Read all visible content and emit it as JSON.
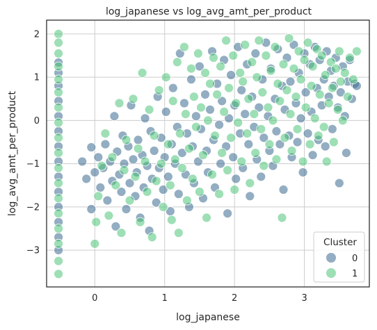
{
  "chart_data": {
    "type": "scatter",
    "title": "log_japanese vs log_avg_amt_per_product",
    "xlabel": "log_japanese",
    "ylabel": "log_avg_amt_per_product",
    "xlim": [
      -0.69,
      3.93
    ],
    "ylim": [
      -3.85,
      2.32
    ],
    "xticks": [
      0,
      1,
      2,
      3
    ],
    "yticks": [
      -3,
      -2,
      -1,
      0,
      1,
      2
    ],
    "grid": true,
    "legend": {
      "title": "Cluster",
      "placement": "bottom-right"
    },
    "series": [
      {
        "name": "0",
        "color": "#3b6a8f",
        "points": [
          [
            -0.52,
            1.34
          ],
          [
            -0.52,
            1.1
          ],
          [
            -0.52,
            0.8
          ],
          [
            -0.52,
            0.45
          ],
          [
            -0.52,
            0.1
          ],
          [
            -0.52,
            -0.25
          ],
          [
            -0.52,
            -0.6
          ],
          [
            -0.52,
            -0.95
          ],
          [
            -0.52,
            -1.3
          ],
          [
            -0.52,
            -1.65
          ],
          [
            -0.52,
            -2.0
          ],
          [
            -0.52,
            -2.35
          ],
          [
            -0.52,
            -2.7
          ],
          [
            -0.52,
            -3.0
          ],
          [
            -0.18,
            -0.95
          ],
          [
            -0.12,
            -1.35
          ],
          [
            -0.05,
            -0.62
          ],
          [
            -0.05,
            -2.05
          ],
          [
            0.0,
            -1.2
          ],
          [
            0.05,
            -0.85
          ],
          [
            0.08,
            -1.55
          ],
          [
            0.12,
            -1.1
          ],
          [
            0.15,
            -0.55
          ],
          [
            0.18,
            -1.85
          ],
          [
            0.22,
            -0.95
          ],
          [
            0.25,
            -1.4
          ],
          [
            0.28,
            0.1
          ],
          [
            0.3,
            -2.45
          ],
          [
            0.32,
            -0.72
          ],
          [
            0.35,
            -1.25
          ],
          [
            0.38,
            -1.65
          ],
          [
            0.4,
            -0.35
          ],
          [
            0.42,
            -1.0
          ],
          [
            0.45,
            -2.05
          ],
          [
            0.48,
            -0.6
          ],
          [
            0.5,
            -1.45
          ],
          [
            0.52,
            0.35
          ],
          [
            0.55,
            -0.9
          ],
          [
            0.58,
            -1.75
          ],
          [
            0.6,
            -1.2
          ],
          [
            0.62,
            -0.45
          ],
          [
            0.65,
            -2.25
          ],
          [
            0.68,
            -0.8
          ],
          [
            0.7,
            -1.55
          ],
          [
            0.72,
            0.05
          ],
          [
            0.75,
            -1.05
          ],
          [
            0.78,
            -2.55
          ],
          [
            0.8,
            -0.25
          ],
          [
            0.82,
            -1.35
          ],
          [
            0.85,
            -0.7
          ],
          [
            0.88,
            -1.9
          ],
          [
            0.9,
            0.55
          ],
          [
            0.92,
            -1.1
          ],
          [
            0.95,
            -0.4
          ],
          [
            0.98,
            -1.6
          ],
          [
            1.0,
            -0.85
          ],
          [
            1.02,
            0.2
          ],
          [
            1.05,
            -1.3
          ],
          [
            1.08,
            -2.1
          ],
          [
            1.1,
            -0.55
          ],
          [
            1.12,
            0.75
          ],
          [
            1.15,
            -1.0
          ],
          [
            1.18,
            -0.15
          ],
          [
            1.2,
            -1.7
          ],
          [
            1.22,
            1.55
          ],
          [
            1.25,
            -0.75
          ],
          [
            1.28,
            0.4
          ],
          [
            1.3,
            -1.25
          ],
          [
            1.32,
            -0.3
          ],
          [
            1.35,
            -2.0
          ],
          [
            1.38,
            0.95
          ],
          [
            1.4,
            -0.6
          ],
          [
            1.42,
            -1.45
          ],
          [
            1.45,
            0.1
          ],
          [
            1.48,
            -0.95
          ],
          [
            1.5,
            1.25
          ],
          [
            1.52,
            -0.2
          ],
          [
            1.55,
            -1.8
          ],
          [
            1.58,
            0.6
          ],
          [
            1.6,
            -0.7
          ],
          [
            1.62,
            -1.2
          ],
          [
            1.65,
            0.25
          ],
          [
            1.68,
            1.6
          ],
          [
            1.7,
            -0.45
          ],
          [
            1.72,
            -1.55
          ],
          [
            1.75,
            0.85
          ],
          [
            1.78,
            -0.1
          ],
          [
            1.8,
            -1.0
          ],
          [
            1.82,
            0.45
          ],
          [
            1.85,
            1.4
          ],
          [
            1.88,
            -0.6
          ],
          [
            1.9,
            -2.15
          ],
          [
            1.92,
            0.05
          ],
          [
            1.95,
            1.05
          ],
          [
            1.98,
            -0.85
          ],
          [
            2.0,
            0.35
          ],
          [
            2.02,
            -1.35
          ],
          [
            2.05,
            1.7
          ],
          [
            2.08,
            -0.3
          ],
          [
            2.1,
            0.7
          ],
          [
            2.12,
            -1.1
          ],
          [
            2.15,
            0.15
          ],
          [
            2.18,
            1.3
          ],
          [
            2.2,
            -0.55
          ],
          [
            2.22,
            -1.75
          ],
          [
            2.25,
            0.55
          ],
          [
            2.28,
            -0.15
          ],
          [
            2.3,
            1.55
          ],
          [
            2.32,
            -0.9
          ],
          [
            2.35,
            0.3
          ],
          [
            2.38,
            -1.3
          ],
          [
            2.4,
            0.95
          ],
          [
            2.42,
            -0.4
          ],
          [
            2.45,
            1.8
          ],
          [
            2.48,
            0.1
          ],
          [
            2.5,
            -0.7
          ],
          [
            2.52,
            1.2
          ],
          [
            2.55,
            -1.05
          ],
          [
            2.58,
            0.5
          ],
          [
            2.6,
            -0.25
          ],
          [
            2.62,
            1.65
          ],
          [
            2.65,
            -0.55
          ],
          [
            2.68,
            0.8
          ],
          [
            2.7,
            -1.6
          ],
          [
            2.72,
            0.25
          ],
          [
            2.75,
            1.45
          ],
          [
            2.78,
            -0.35
          ],
          [
            2.8,
            0.9
          ],
          [
            2.82,
            -0.85
          ],
          [
            2.85,
            1.75
          ],
          [
            2.88,
            0.4
          ],
          [
            2.9,
            -0.5
          ],
          [
            2.92,
            1.1
          ],
          [
            2.95,
            0.05
          ],
          [
            2.98,
            -1.2
          ],
          [
            3.0,
            1.55
          ],
          [
            3.02,
            0.65
          ],
          [
            3.05,
            -0.3
          ],
          [
            3.08,
            1.3
          ],
          [
            3.1,
            0.2
          ],
          [
            3.12,
            -0.8
          ],
          [
            3.15,
            1.7
          ],
          [
            3.18,
            0.75
          ],
          [
            3.2,
            -0.45
          ],
          [
            3.22,
            1.4
          ],
          [
            3.25,
            0.35
          ],
          [
            3.28,
            0.95
          ],
          [
            3.3,
            -0.6
          ],
          [
            3.32,
            1.6
          ],
          [
            3.35,
            0.55
          ],
          [
            3.38,
            1.15
          ],
          [
            3.4,
            -0.2
          ],
          [
            3.42,
            0.8
          ],
          [
            3.45,
            1.45
          ],
          [
            3.48,
            0.3
          ],
          [
            3.5,
            -1.45
          ],
          [
            3.52,
            0.65
          ],
          [
            3.55,
            1.25
          ],
          [
            3.58,
            0.1
          ],
          [
            3.6,
            -0.75
          ],
          [
            3.62,
            0.9
          ],
          [
            3.65,
            1.4
          ],
          [
            3.68,
            0.5
          ],
          [
            3.72,
            0.85
          ],
          [
            3.75,
            0.8
          ]
        ]
      },
      {
        "name": "1",
        "color": "#4ec47a",
        "points": [
          [
            -0.52,
            2.0
          ],
          [
            -0.52,
            1.8
          ],
          [
            -0.52,
            1.55
          ],
          [
            -0.52,
            1.25
          ],
          [
            -0.52,
            0.95
          ],
          [
            -0.52,
            0.65
          ],
          [
            -0.52,
            0.3
          ],
          [
            -0.52,
            -0.05
          ],
          [
            -0.52,
            -0.4
          ],
          [
            -0.52,
            -0.75
          ],
          [
            -0.52,
            -1.1
          ],
          [
            -0.52,
            -1.45
          ],
          [
            -0.52,
            -1.8
          ],
          [
            -0.52,
            -2.15
          ],
          [
            -0.52,
            -2.5
          ],
          [
            -0.52,
            -2.85
          ],
          [
            -0.52,
            -3.25
          ],
          [
            -0.52,
            -3.55
          ],
          [
            0.0,
            -2.85
          ],
          [
            0.02,
            -2.35
          ],
          [
            0.05,
            -1.75
          ],
          [
            0.1,
            -1.05
          ],
          [
            0.15,
            -0.3
          ],
          [
            0.2,
            -2.2
          ],
          [
            0.25,
            -0.85
          ],
          [
            0.3,
            -1.5
          ],
          [
            0.35,
            0.4
          ],
          [
            0.38,
            -2.6
          ],
          [
            0.42,
            -1.15
          ],
          [
            0.45,
            -0.45
          ],
          [
            0.5,
            -1.85
          ],
          [
            0.55,
            0.5
          ],
          [
            0.58,
            -1.3
          ],
          [
            0.62,
            -0.65
          ],
          [
            0.65,
            -2.35
          ],
          [
            0.68,
            1.1
          ],
          [
            0.72,
            -0.95
          ],
          [
            0.75,
            -1.65
          ],
          [
            0.78,
            0.25
          ],
          [
            0.82,
            -2.7
          ],
          [
            0.85,
            -0.35
          ],
          [
            0.88,
            -1.4
          ],
          [
            0.92,
            0.7
          ],
          [
            0.95,
            -1.0
          ],
          [
            0.98,
            -2.0
          ],
          [
            1.02,
            1.0
          ],
          [
            1.05,
            -0.55
          ],
          [
            1.08,
            -1.5
          ],
          [
            1.1,
            -2.3
          ],
          [
            1.12,
            0.45
          ],
          [
            1.15,
            -0.9
          ],
          [
            1.18,
            1.35
          ],
          [
            1.2,
            -2.6
          ],
          [
            1.22,
            -0.3
          ],
          [
            1.25,
            -1.1
          ],
          [
            1.28,
            1.7
          ],
          [
            1.3,
            0.15
          ],
          [
            1.32,
            -1.85
          ],
          [
            1.35,
            -0.65
          ],
          [
            1.38,
            1.2
          ],
          [
            1.4,
            -1.35
          ],
          [
            1.42,
            0.55
          ],
          [
            1.45,
            -0.15
          ],
          [
            1.48,
            1.55
          ],
          [
            1.5,
            -1.65
          ],
          [
            1.52,
            0.3
          ],
          [
            1.55,
            -0.8
          ],
          [
            1.58,
            1.1
          ],
          [
            1.6,
            -2.25
          ],
          [
            1.62,
            0.0
          ],
          [
            1.65,
            0.85
          ],
          [
            1.68,
            -1.25
          ],
          [
            1.7,
            1.45
          ],
          [
            1.72,
            -0.35
          ],
          [
            1.75,
            0.6
          ],
          [
            1.78,
            -1.7
          ],
          [
            1.8,
            1.25
          ],
          [
            1.82,
            -0.75
          ],
          [
            1.85,
            0.2
          ],
          [
            1.88,
            1.85
          ],
          [
            1.9,
            -1.15
          ],
          [
            1.92,
            0.75
          ],
          [
            1.95,
            -0.4
          ],
          [
            1.98,
            1.5
          ],
          [
            2.0,
            -1.6
          ],
          [
            2.02,
            0.4
          ],
          [
            2.05,
            -0.05
          ],
          [
            2.08,
            1.1
          ],
          [
            2.1,
            -0.95
          ],
          [
            2.12,
            0.9
          ],
          [
            2.15,
            1.75
          ],
          [
            2.18,
            -0.3
          ],
          [
            2.2,
            0.5
          ],
          [
            2.22,
            -1.45
          ],
          [
            2.25,
            1.35
          ],
          [
            2.28,
            0.15
          ],
          [
            2.3,
            -0.75
          ],
          [
            2.32,
            1.0
          ],
          [
            2.35,
            1.85
          ],
          [
            2.38,
            -0.2
          ],
          [
            2.4,
            0.65
          ],
          [
            2.42,
            -1.05
          ],
          [
            2.45,
            1.5
          ],
          [
            2.48,
            0.3
          ],
          [
            2.5,
            -0.55
          ],
          [
            2.52,
            1.15
          ],
          [
            2.55,
            0.0
          ],
          [
            2.58,
            1.7
          ],
          [
            2.6,
            -0.9
          ],
          [
            2.62,
            0.85
          ],
          [
            2.65,
            0.45
          ],
          [
            2.68,
            -2.25
          ],
          [
            2.7,
            1.3
          ],
          [
            2.72,
            -0.4
          ],
          [
            2.75,
            0.7
          ],
          [
            2.78,
            1.9
          ],
          [
            2.8,
            0.15
          ],
          [
            2.82,
            -0.7
          ],
          [
            2.85,
            1.2
          ],
          [
            2.88,
            0.55
          ],
          [
            2.9,
            -0.2
          ],
          [
            2.92,
            1.6
          ],
          [
            2.95,
            0.95
          ],
          [
            2.98,
            -0.95
          ],
          [
            3.0,
            1.4
          ],
          [
            3.02,
            0.3
          ],
          [
            3.05,
            1.8
          ],
          [
            3.08,
            -0.55
          ],
          [
            3.1,
            0.8
          ],
          [
            3.12,
            1.25
          ],
          [
            3.15,
            0.05
          ],
          [
            3.18,
            1.65
          ],
          [
            3.2,
            -0.35
          ],
          [
            3.22,
            0.6
          ],
          [
            3.25,
            1.5
          ],
          [
            3.28,
            -0.15
          ],
          [
            3.3,
            1.05
          ],
          [
            3.32,
            -0.95
          ],
          [
            3.35,
            0.4
          ],
          [
            3.38,
            1.35
          ],
          [
            3.4,
            0.75
          ],
          [
            3.42,
            -0.5
          ],
          [
            3.45,
            1.2
          ],
          [
            3.48,
            0.25
          ],
          [
            3.5,
            1.6
          ],
          [
            3.52,
            0.9
          ],
          [
            3.55,
            0.0
          ],
          [
            3.58,
            1.1
          ],
          [
            3.62,
            0.55
          ],
          [
            3.65,
            1.45
          ],
          [
            3.7,
            0.95
          ],
          [
            3.75,
            1.6
          ]
        ]
      }
    ]
  }
}
